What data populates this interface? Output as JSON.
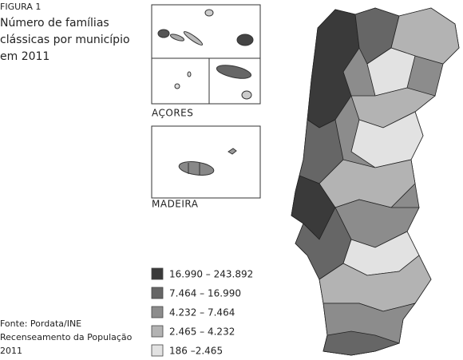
{
  "figure_label": "FIGURA 1",
  "title_lines": [
    "Número de famílias",
    "clássicas por município",
    "em 2011"
  ],
  "insets": [
    {
      "label": "AÇORES"
    },
    {
      "label": "MADEIRA"
    }
  ],
  "legend": [
    {
      "label": "16.990 – 243.892",
      "color": "#3a3a3a"
    },
    {
      "label": "7.464 – 16.990",
      "color": "#666666"
    },
    {
      "label": "4.232 – 7.464",
      "color": "#8c8c8c"
    },
    {
      "label": "2.465 – 4.232",
      "color": "#b3b3b3"
    },
    {
      "label": "186 –2.465",
      "color": "#e2e2e2"
    }
  ],
  "source_lines": [
    "Fonte: Pordata/INE",
    "Recenseamento da População",
    "2011"
  ]
}
